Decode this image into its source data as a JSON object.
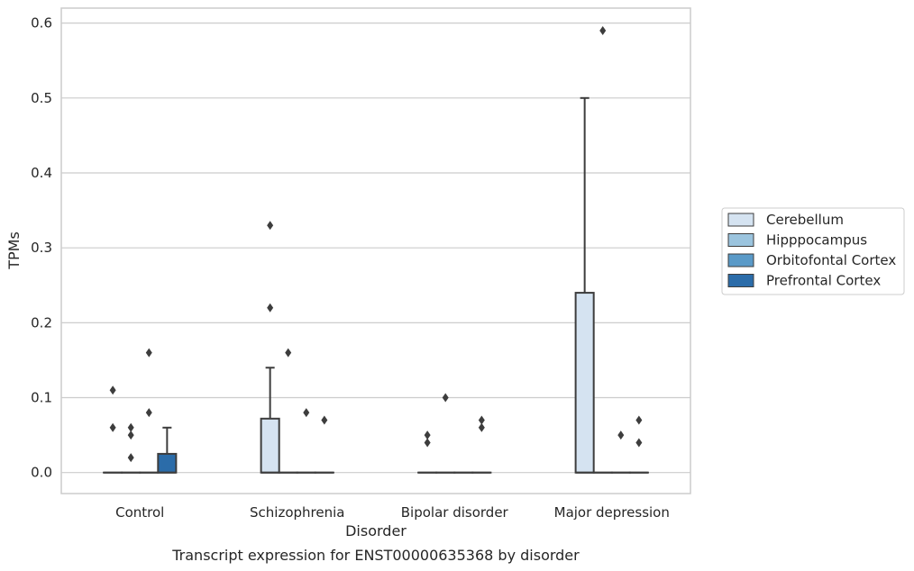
{
  "caption": "Transcript expression for ENST00000635368 by disorder",
  "chart_data": {
    "type": "box",
    "title": "",
    "xlabel": "Disorder",
    "ylabel": "TPMs",
    "ylim": [
      -0.028,
      0.62
    ],
    "yticks": [
      0.0,
      0.1,
      0.2,
      0.3,
      0.4,
      0.5,
      0.6
    ],
    "ytick_labels": [
      "0.0",
      "0.1",
      "0.2",
      "0.3",
      "0.4",
      "0.5",
      "0.6"
    ],
    "grid": true,
    "legend_position": "right",
    "categories": [
      "Control",
      "Schizophrenia",
      "Bipolar disorder",
      "Major depression"
    ],
    "series": [
      {
        "name": "Cerebellum",
        "color": "#d5e3f1",
        "boxes": [
          {
            "q1": 0,
            "median": 0,
            "q3": 0,
            "whisker_low": 0,
            "whisker_high": 0,
            "outliers": [
              0.06,
              0.11
            ]
          },
          {
            "q1": 0,
            "median": 0,
            "q3": 0.072,
            "whisker_low": 0,
            "whisker_high": 0.14,
            "outliers": [
              0.22,
              0.33
            ]
          },
          {
            "q1": 0,
            "median": 0,
            "q3": 0,
            "whisker_low": 0,
            "whisker_high": 0,
            "outliers": [
              0.04,
              0.05
            ]
          },
          {
            "q1": 0,
            "median": 0,
            "q3": 0.24,
            "whisker_low": 0,
            "whisker_high": 0.5,
            "outliers": []
          }
        ]
      },
      {
        "name": "Hipppocampus",
        "color": "#9bc4de",
        "boxes": [
          {
            "q1": 0,
            "median": 0,
            "q3": 0,
            "whisker_low": 0,
            "whisker_high": 0,
            "outliers": [
              0.02,
              0.05,
              0.06
            ]
          },
          {
            "q1": 0,
            "median": 0,
            "q3": 0,
            "whisker_low": 0,
            "whisker_high": 0,
            "outliers": [
              0.16
            ]
          },
          {
            "q1": 0,
            "median": 0,
            "q3": 0,
            "whisker_low": 0,
            "whisker_high": 0,
            "outliers": [
              0.1
            ]
          },
          {
            "q1": 0,
            "median": 0,
            "q3": 0,
            "whisker_low": 0,
            "whisker_high": 0,
            "outliers": [
              0.59
            ]
          }
        ]
      },
      {
        "name": "Orbitofontal Cortex",
        "color": "#5a9ac8",
        "boxes": [
          {
            "q1": 0,
            "median": 0,
            "q3": 0,
            "whisker_low": 0,
            "whisker_high": 0,
            "outliers": [
              0.08,
              0.16
            ]
          },
          {
            "q1": 0,
            "median": 0,
            "q3": 0,
            "whisker_low": 0,
            "whisker_high": 0,
            "outliers": [
              0.08
            ]
          },
          {
            "q1": 0,
            "median": 0,
            "q3": 0,
            "whisker_low": 0,
            "whisker_high": 0,
            "outliers": []
          },
          {
            "q1": 0,
            "median": 0,
            "q3": 0,
            "whisker_low": 0,
            "whisker_high": 0,
            "outliers": [
              0.05
            ]
          }
        ]
      },
      {
        "name": "Prefrontal Cortex",
        "color": "#2b6ca9",
        "boxes": [
          {
            "q1": 0,
            "median": 0,
            "q3": 0.025,
            "whisker_low": 0,
            "whisker_high": 0.06,
            "outliers": []
          },
          {
            "q1": 0,
            "median": 0,
            "q3": 0,
            "whisker_low": 0,
            "whisker_high": 0,
            "outliers": [
              0.07
            ]
          },
          {
            "q1": 0,
            "median": 0,
            "q3": 0,
            "whisker_low": 0,
            "whisker_high": 0,
            "outliers": [
              0.06,
              0.07
            ]
          },
          {
            "q1": 0,
            "median": 0,
            "q3": 0,
            "whisker_low": 0,
            "whisker_high": 0,
            "outliers": [
              0.04,
              0.07
            ]
          }
        ]
      }
    ]
  }
}
